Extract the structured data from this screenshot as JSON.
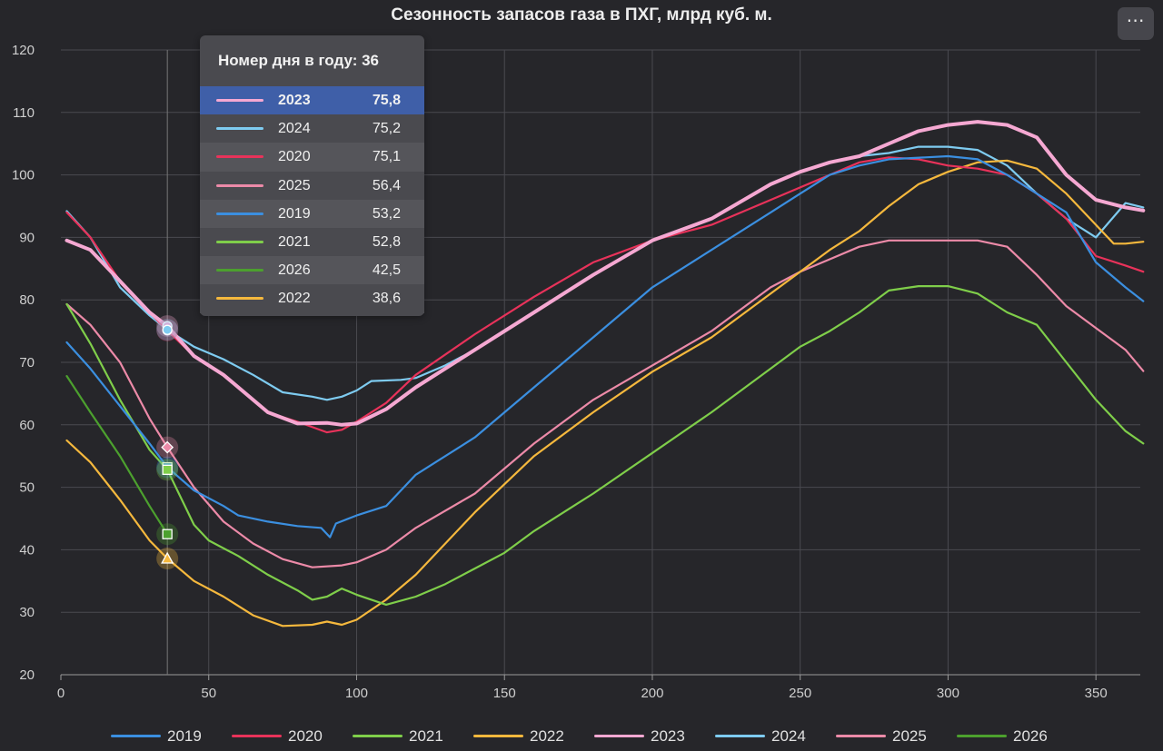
{
  "chart_title": "Сезонность запасов газа в ПХГ, млрд куб. м.",
  "menu_icon": "ellipsis-icon",
  "menu_glyph": "⋯",
  "tooltip": {
    "header": "Номер дня в году: 36",
    "rows": [
      {
        "name": "2023",
        "value": "75,8"
      },
      {
        "name": "2024",
        "value": "75,2"
      },
      {
        "name": "2020",
        "value": "75,1"
      },
      {
        "name": "2025",
        "value": "56,4"
      },
      {
        "name": "2019",
        "value": "53,2"
      },
      {
        "name": "2021",
        "value": "52,8"
      },
      {
        "name": "2026",
        "value": "42,5"
      },
      {
        "name": "2022",
        "value": "38,6"
      }
    ]
  },
  "chart_data": {
    "type": "line",
    "title": "Сезонность запасов газа в ПХГ, млрд куб. м.",
    "xlabel": "",
    "ylabel": "",
    "xlim": [
      0,
      365
    ],
    "ylim": [
      20,
      120
    ],
    "xticks": [
      0,
      50,
      100,
      150,
      200,
      250,
      300,
      350
    ],
    "yticks": [
      20,
      30,
      40,
      50,
      60,
      70,
      80,
      90,
      100,
      110,
      120
    ],
    "grid": true,
    "legend": "bottom",
    "hover_day": 36,
    "series": [
      {
        "name": "2019",
        "color": "#3b8fe0",
        "points": [
          [
            2,
            73.2
          ],
          [
            10,
            69
          ],
          [
            20,
            63
          ],
          [
            30,
            57
          ],
          [
            36,
            53.2
          ],
          [
            45,
            49.5
          ],
          [
            55,
            47
          ],
          [
            60,
            45.5
          ],
          [
            70,
            44.5
          ],
          [
            80,
            43.8
          ],
          [
            88,
            43.5
          ],
          [
            91,
            42
          ],
          [
            93,
            44.2
          ],
          [
            100,
            45.5
          ],
          [
            110,
            47
          ],
          [
            120,
            52
          ],
          [
            140,
            58
          ],
          [
            160,
            66
          ],
          [
            180,
            74
          ],
          [
            200,
            82
          ],
          [
            220,
            88
          ],
          [
            240,
            94
          ],
          [
            250,
            97
          ],
          [
            260,
            100
          ],
          [
            270,
            101.5
          ],
          [
            280,
            102.5
          ],
          [
            300,
            103
          ],
          [
            310,
            102.5
          ],
          [
            320,
            100
          ],
          [
            330,
            97
          ],
          [
            340,
            94
          ],
          [
            350,
            86
          ],
          [
            360,
            82
          ],
          [
            366,
            79.8
          ]
        ]
      },
      {
        "name": "2020",
        "color": "#e8325a",
        "points": [
          [
            2,
            94
          ],
          [
            10,
            90
          ],
          [
            20,
            83
          ],
          [
            30,
            78
          ],
          [
            36,
            75.1
          ],
          [
            45,
            71
          ],
          [
            55,
            68
          ],
          [
            70,
            62
          ],
          [
            80,
            60.5
          ],
          [
            90,
            58.8
          ],
          [
            95,
            59.2
          ],
          [
            100,
            60.5
          ],
          [
            110,
            63.5
          ],
          [
            120,
            68
          ],
          [
            140,
            74.5
          ],
          [
            160,
            80.5
          ],
          [
            180,
            86
          ],
          [
            200,
            89.5
          ],
          [
            220,
            92
          ],
          [
            240,
            96
          ],
          [
            250,
            98
          ],
          [
            260,
            100
          ],
          [
            270,
            102
          ],
          [
            280,
            102.8
          ],
          [
            290,
            102.5
          ],
          [
            300,
            101.5
          ],
          [
            310,
            101
          ],
          [
            320,
            100
          ],
          [
            330,
            97
          ],
          [
            340,
            93
          ],
          [
            350,
            87
          ],
          [
            360,
            85.5
          ],
          [
            366,
            84.5
          ]
        ]
      },
      {
        "name": "2021",
        "color": "#7fce4a",
        "points": [
          [
            2,
            79.3
          ],
          [
            10,
            73
          ],
          [
            20,
            64
          ],
          [
            30,
            56
          ],
          [
            36,
            52.8
          ],
          [
            45,
            44
          ],
          [
            50,
            41.5
          ],
          [
            60,
            39
          ],
          [
            70,
            36
          ],
          [
            80,
            33.5
          ],
          [
            85,
            32
          ],
          [
            90,
            32.5
          ],
          [
            95,
            33.8
          ],
          [
            100,
            32.8
          ],
          [
            110,
            31.2
          ],
          [
            120,
            32.5
          ],
          [
            130,
            34.5
          ],
          [
            140,
            37
          ],
          [
            150,
            39.5
          ],
          [
            160,
            43
          ],
          [
            180,
            49
          ],
          [
            200,
            55.5
          ],
          [
            220,
            62
          ],
          [
            240,
            69
          ],
          [
            250,
            72.5
          ],
          [
            260,
            75
          ],
          [
            270,
            78
          ],
          [
            280,
            81.5
          ],
          [
            290,
            82.2
          ],
          [
            300,
            82.2
          ],
          [
            310,
            81
          ],
          [
            320,
            78
          ],
          [
            330,
            76
          ],
          [
            340,
            70
          ],
          [
            350,
            64
          ],
          [
            360,
            59
          ],
          [
            366,
            57
          ]
        ]
      },
      {
        "name": "2022",
        "color": "#f5b83d",
        "points": [
          [
            2,
            57.5
          ],
          [
            10,
            54
          ],
          [
            20,
            48
          ],
          [
            30,
            41.5
          ],
          [
            36,
            38.6
          ],
          [
            45,
            35
          ],
          [
            55,
            32.5
          ],
          [
            65,
            29.5
          ],
          [
            75,
            27.8
          ],
          [
            85,
            28
          ],
          [
            90,
            28.5
          ],
          [
            95,
            28
          ],
          [
            100,
            28.8
          ],
          [
            110,
            32
          ],
          [
            120,
            36
          ],
          [
            140,
            46
          ],
          [
            160,
            55
          ],
          [
            180,
            62
          ],
          [
            200,
            68.5
          ],
          [
            220,
            74
          ],
          [
            240,
            81
          ],
          [
            250,
            84.5
          ],
          [
            260,
            88
          ],
          [
            270,
            91
          ],
          [
            280,
            95
          ],
          [
            290,
            98.5
          ],
          [
            300,
            100.5
          ],
          [
            310,
            102
          ],
          [
            320,
            102.3
          ],
          [
            330,
            101
          ],
          [
            340,
            97
          ],
          [
            350,
            92
          ],
          [
            356,
            89
          ],
          [
            360,
            89
          ],
          [
            366,
            89.3
          ]
        ]
      },
      {
        "name": "2023",
        "color": "#f5a8d2",
        "points": [
          [
            2,
            89.5
          ],
          [
            10,
            88
          ],
          [
            20,
            83
          ],
          [
            30,
            78
          ],
          [
            36,
            75.8
          ],
          [
            45,
            71
          ],
          [
            55,
            68
          ],
          [
            70,
            62
          ],
          [
            80,
            60.2
          ],
          [
            90,
            60.3
          ],
          [
            95,
            60
          ],
          [
            100,
            60.2
          ],
          [
            110,
            62.5
          ],
          [
            120,
            66
          ],
          [
            140,
            72
          ],
          [
            160,
            78
          ],
          [
            180,
            84
          ],
          [
            200,
            89.5
          ],
          [
            220,
            93
          ],
          [
            240,
            98.5
          ],
          [
            250,
            100.5
          ],
          [
            260,
            102
          ],
          [
            270,
            103
          ],
          [
            280,
            105
          ],
          [
            290,
            107
          ],
          [
            300,
            108
          ],
          [
            310,
            108.5
          ],
          [
            320,
            108
          ],
          [
            330,
            106
          ],
          [
            340,
            100
          ],
          [
            350,
            96
          ],
          [
            360,
            94.8
          ],
          [
            366,
            94.3
          ]
        ]
      },
      {
        "name": "2024",
        "color": "#7ecbf0",
        "points": [
          [
            2,
            94.2
          ],
          [
            10,
            90
          ],
          [
            20,
            82
          ],
          [
            30,
            77.5
          ],
          [
            36,
            75.2
          ],
          [
            45,
            72.5
          ],
          [
            55,
            70.5
          ],
          [
            65,
            68
          ],
          [
            75,
            65.2
          ],
          [
            85,
            64.5
          ],
          [
            90,
            64
          ],
          [
            95,
            64.5
          ],
          [
            100,
            65.5
          ],
          [
            105,
            67
          ],
          [
            115,
            67.2
          ],
          [
            120,
            67.5
          ],
          [
            130,
            69.5
          ],
          [
            140,
            72
          ],
          [
            160,
            78
          ],
          [
            180,
            84
          ],
          [
            200,
            89.5
          ],
          [
            220,
            93
          ],
          [
            240,
            98.5
          ],
          [
            250,
            100.5
          ],
          [
            260,
            102
          ],
          [
            270,
            103
          ],
          [
            280,
            103.5
          ],
          [
            290,
            104.5
          ],
          [
            300,
            104.5
          ],
          [
            310,
            104
          ],
          [
            320,
            101.5
          ],
          [
            330,
            97
          ],
          [
            340,
            93
          ],
          [
            350,
            90
          ],
          [
            360,
            95.5
          ],
          [
            366,
            94.8
          ]
        ]
      },
      {
        "name": "2025",
        "color": "#ec8aa8",
        "points": [
          [
            2,
            79.3
          ],
          [
            10,
            76
          ],
          [
            20,
            70
          ],
          [
            30,
            61
          ],
          [
            36,
            56.4
          ],
          [
            45,
            50
          ],
          [
            55,
            44.5
          ],
          [
            65,
            41
          ],
          [
            75,
            38.5
          ],
          [
            85,
            37.2
          ],
          [
            95,
            37.5
          ],
          [
            100,
            38
          ],
          [
            110,
            40
          ],
          [
            120,
            43.5
          ],
          [
            140,
            49
          ],
          [
            160,
            57
          ],
          [
            180,
            64
          ],
          [
            200,
            69.5
          ],
          [
            220,
            75
          ],
          [
            240,
            82
          ],
          [
            250,
            84.5
          ],
          [
            260,
            86.5
          ],
          [
            270,
            88.5
          ],
          [
            280,
            89.5
          ],
          [
            290,
            89.5
          ],
          [
            300,
            89.5
          ],
          [
            310,
            89.5
          ],
          [
            320,
            88.5
          ],
          [
            330,
            84
          ],
          [
            340,
            79
          ],
          [
            350,
            75.5
          ],
          [
            360,
            72
          ],
          [
            366,
            68.6
          ]
        ]
      },
      {
        "name": "2026",
        "color": "#4ca02e",
        "points": [
          [
            2,
            67.8
          ],
          [
            10,
            62
          ],
          [
            20,
            55
          ],
          [
            30,
            47
          ],
          [
            36,
            42.5
          ]
        ]
      }
    ]
  },
  "legend_items": [
    {
      "name": "2019",
      "color": "#3b8fe0"
    },
    {
      "name": "2020",
      "color": "#e8325a"
    },
    {
      "name": "2021",
      "color": "#7fce4a"
    },
    {
      "name": "2022",
      "color": "#f5b83d"
    },
    {
      "name": "2023",
      "color": "#f5a8d2"
    },
    {
      "name": "2024",
      "color": "#7ecbf0"
    },
    {
      "name": "2025",
      "color": "#ec8aa8"
    },
    {
      "name": "2026",
      "color": "#4ca02e"
    }
  ]
}
